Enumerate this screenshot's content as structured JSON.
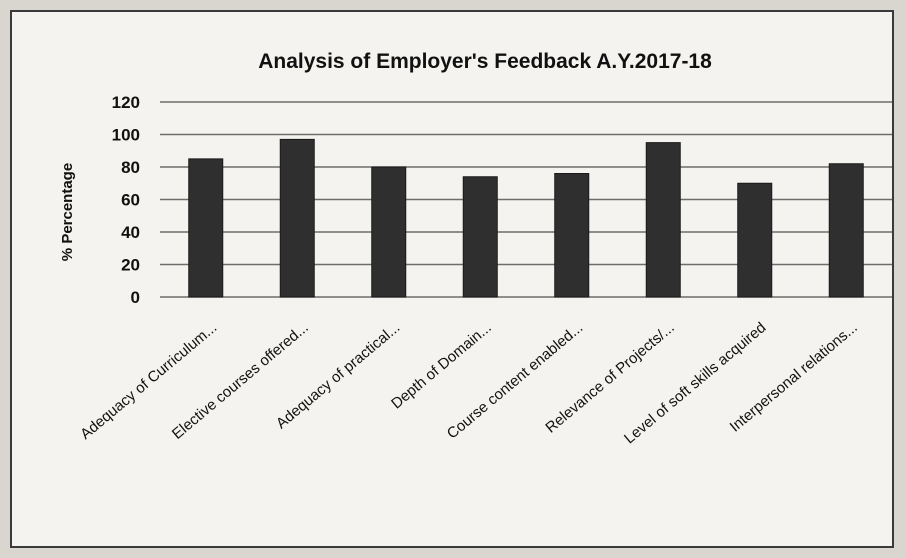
{
  "chart_data": {
    "type": "bar",
    "title": "Analysis of Employer's Feedback A.Y.2017-18",
    "ylabel": "% Percentage",
    "xlabel": "",
    "ylim": [
      0,
      120
    ],
    "yticks": [
      0,
      20,
      40,
      60,
      80,
      100,
      120
    ],
    "grid": true,
    "categories": [
      "Adequacy of Curriculum...",
      "Elective courses offered...",
      "Adequacy of practical...",
      "Depth of Domain...",
      "Course content enabled...",
      "Relevance of Projects/...",
      "Level of soft skills acquired",
      "Interpersonal relations..."
    ],
    "values": [
      85,
      97,
      80,
      74,
      76,
      95,
      70,
      82
    ],
    "bar_color": "#2f2f2f"
  }
}
